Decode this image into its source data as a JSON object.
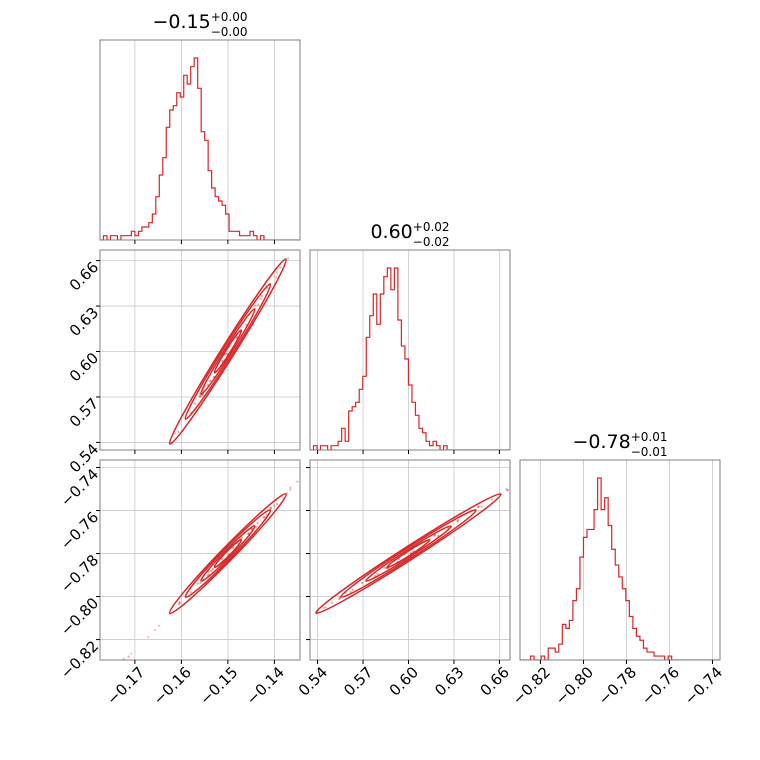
{
  "chart_data": {
    "type": "corner",
    "color": "#d62728",
    "parameters": [
      {
        "median": -0.15,
        "title": {
          "main": "−0.15",
          "plus": "+0.00",
          "minus": "−0.00"
        },
        "range": [
          -0.1775,
          -0.1345
        ],
        "ticks": [
          -0.17,
          -0.16,
          -0.15,
          -0.14
        ],
        "tick_labels": [
          "−0.17",
          "−0.16",
          "−0.15",
          "−0.14"
        ],
        "hist": {
          "start": -0.1775,
          "step": 0.00075,
          "counts": [
            0,
            1,
            0,
            1,
            1,
            0,
            1,
            1,
            1,
            2,
            1,
            2,
            3,
            3,
            4,
            6,
            10,
            15,
            19,
            26,
            30,
            31,
            34,
            33,
            38,
            36,
            40,
            42,
            35,
            25,
            23,
            16,
            12,
            10,
            9,
            8,
            6,
            2,
            2,
            2,
            1,
            1,
            1,
            2,
            1,
            0,
            1,
            0,
            0,
            0,
            0,
            0,
            0,
            0,
            0,
            0,
            0
          ]
        }
      },
      {
        "median": 0.6,
        "title": {
          "main": "0.60",
          "plus": "+0.02",
          "minus": "−0.02"
        },
        "range": [
          0.535,
          0.667
        ],
        "ticks": [
          0.54,
          0.57,
          0.6,
          0.63,
          0.66
        ],
        "tick_labels": [
          "0.54",
          "0.57",
          "0.60",
          "0.63",
          "0.66"
        ],
        "hist": {
          "start": 0.535,
          "step": 0.00232,
          "counts": [
            0,
            1,
            0,
            1,
            1,
            0,
            1,
            1,
            2,
            5,
            2,
            9,
            10,
            11,
            14,
            17,
            26,
            31,
            36,
            29,
            36,
            40,
            42,
            37,
            42,
            30,
            24,
            21,
            15,
            11,
            8,
            5,
            4,
            2,
            1,
            2,
            1,
            0,
            1,
            0,
            0,
            0,
            0,
            0,
            0,
            0,
            0,
            0,
            0,
            0,
            0,
            0,
            0,
            0,
            0,
            0,
            0
          ]
        }
      },
      {
        "median": -0.78,
        "title": {
          "main": "−0.78",
          "plus": "+0.01",
          "minus": "−0.01"
        },
        "range": [
          -0.8295,
          -0.7365
        ],
        "ticks": [
          -0.82,
          -0.8,
          -0.78,
          -0.76,
          -0.74
        ],
        "tick_labels": [
          "−0.82",
          "−0.80",
          "−0.78",
          "−0.76",
          "−0.74"
        ],
        "hist": {
          "start": -0.8295,
          "step": 0.00164,
          "counts": [
            0,
            0,
            0,
            1,
            0,
            0,
            1,
            0,
            3,
            3,
            2,
            4,
            9,
            8,
            10,
            15,
            18,
            26,
            31,
            33,
            33,
            38,
            46,
            38,
            41,
            34,
            28,
            24,
            21,
            18,
            15,
            11,
            8,
            6,
            5,
            3,
            2,
            2,
            1,
            1,
            1,
            0,
            1,
            0,
            0,
            0,
            0,
            0,
            0,
            0,
            0,
            0,
            0,
            0,
            0,
            0,
            0
          ]
        }
      }
    ],
    "pairs": [
      {
        "x_param": 0,
        "y_param": 1,
        "slope": 4.89,
        "spread": 0.0022
      },
      {
        "x_param": 0,
        "y_param": 2,
        "slope": 2.22,
        "spread": 0.001
      },
      {
        "x_param": 1,
        "y_param": 2,
        "slope": 0.453,
        "spread": 0.0009
      }
    ],
    "grid": true
  }
}
